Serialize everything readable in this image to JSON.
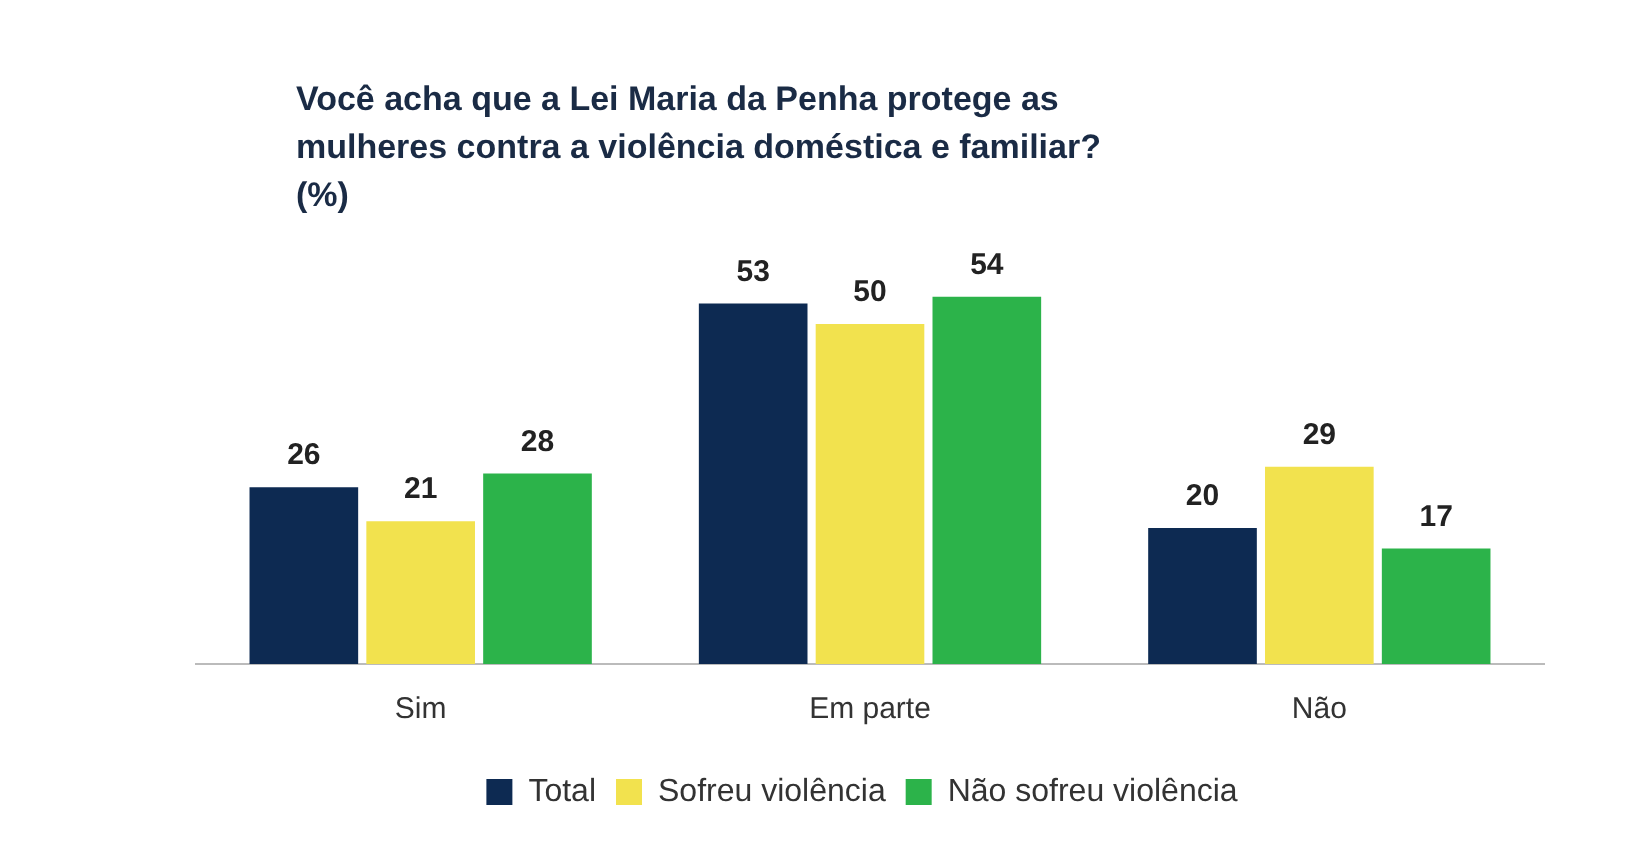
{
  "chart_data": {
    "type": "bar",
    "title": "Você acha que a Lei Maria da Penha protege as\nmulheres contra a violência doméstica e familiar?\n(%)",
    "categories": [
      "Sim",
      "Em parte",
      "Não"
    ],
    "series": [
      {
        "name": "Total",
        "color": "#0d2a52",
        "values": [
          26,
          53,
          20
        ]
      },
      {
        "name": "Sofreu violência",
        "color": "#f2e24e",
        "values": [
          21,
          50,
          29
        ]
      },
      {
        "name": "Não sofreu violência",
        "color": "#2cb34a",
        "values": [
          28,
          54,
          17
        ]
      }
    ],
    "tick_labels": "x",
    "data_labels": true,
    "grid": false,
    "legend": "bottom"
  }
}
